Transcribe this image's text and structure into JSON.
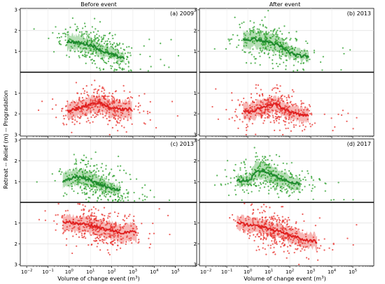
{
  "figure": {
    "col_titles": [
      "Before event",
      "After event"
    ],
    "ylabel": "Retreat -- Relief (m) -- Progradation",
    "xlabel_main": "Volume of change event (m",
    "xlabel_sup": "3",
    "xlabel_close": ")"
  },
  "colors": {
    "prog": "#2ca02c",
    "prog_line": "#1e8a2e",
    "ret": "#e8312c",
    "ret_line": "#e02020"
  },
  "chart_data": [
    {
      "type": "scatter",
      "panel_label": "(a) 2009",
      "x_scale": "log",
      "xlim": [
        0.005,
        1000000
      ],
      "ylim_top": [
        0,
        3
      ],
      "ylim_bottom": [
        0,
        3
      ],
      "grid": true,
      "series": [
        {
          "name": "",
          "kind": "progradation",
          "median_x": [
            0.8,
            1.5,
            3,
            6,
            12,
            25,
            50,
            100,
            200,
            400
          ],
          "median_y": [
            1.5,
            1.45,
            1.4,
            1.35,
            1.3,
            1.1,
            0.95,
            0.85,
            0.75,
            0.7
          ],
          "band_low": [
            1.1,
            1.1,
            1.05,
            1.0,
            0.95,
            0.8,
            0.7,
            0.6,
            0.55,
            0.5
          ],
          "band_high": [
            1.85,
            1.8,
            1.75,
            1.7,
            1.65,
            1.45,
            1.3,
            1.15,
            1.0,
            0.95
          ]
        },
        {
          "name": "",
          "kind": "retreat",
          "median_x": [
            0.8,
            1.5,
            3,
            6,
            12,
            25,
            50,
            100,
            200,
            400,
            900
          ],
          "median_y": [
            1.9,
            1.8,
            1.7,
            1.6,
            1.55,
            1.45,
            1.6,
            1.7,
            1.75,
            1.8,
            1.75
          ],
          "band_low": [
            1.5,
            1.4,
            1.35,
            1.25,
            1.2,
            1.1,
            1.25,
            1.3,
            1.35,
            1.4,
            1.3
          ],
          "band_high": [
            2.3,
            2.2,
            2.1,
            2.05,
            2.0,
            1.9,
            2.0,
            2.15,
            2.2,
            2.25,
            2.2
          ]
        }
      ]
    },
    {
      "type": "scatter",
      "panel_label": "(b) 2013",
      "x_scale": "log",
      "xlim": [
        0.005,
        1000000
      ],
      "ylim_top": [
        0,
        3
      ],
      "ylim_bottom": [
        0,
        3
      ],
      "grid": true,
      "series": [
        {
          "name": "",
          "kind": "progradation",
          "median_x": [
            0.6,
            1.2,
            2.5,
            5,
            10,
            20,
            40,
            80,
            160,
            320,
            800
          ],
          "median_y": [
            1.6,
            1.55,
            1.6,
            1.5,
            1.45,
            1.35,
            1.2,
            1.0,
            0.85,
            0.78,
            0.75
          ],
          "band_low": [
            1.2,
            1.15,
            1.2,
            1.1,
            1.05,
            0.95,
            0.85,
            0.7,
            0.6,
            0.55,
            0.5
          ],
          "band_high": [
            2.0,
            1.95,
            2.0,
            1.9,
            1.85,
            1.75,
            1.6,
            1.35,
            1.15,
            1.05,
            1.0
          ]
        },
        {
          "name": "",
          "kind": "retreat",
          "median_x": [
            0.6,
            1.2,
            2.5,
            5,
            10,
            20,
            40,
            80,
            160,
            320,
            800
          ],
          "median_y": [
            1.9,
            1.9,
            1.8,
            1.7,
            1.6,
            1.55,
            1.7,
            1.85,
            1.95,
            2.05,
            2.1
          ],
          "band_low": [
            1.5,
            1.5,
            1.4,
            1.3,
            1.25,
            1.2,
            1.35,
            1.5,
            1.6,
            1.7,
            1.75
          ],
          "band_high": [
            2.3,
            2.3,
            2.2,
            2.1,
            2.0,
            1.95,
            2.05,
            2.2,
            2.3,
            2.4,
            2.45
          ]
        }
      ]
    },
    {
      "type": "scatter",
      "panel_label": "(c) 2013",
      "x_scale": "log",
      "xlim": [
        0.005,
        1000000
      ],
      "ylim_top": [
        0,
        3
      ],
      "ylim_bottom": [
        0,
        3
      ],
      "grid": true,
      "series": [
        {
          "name": "",
          "kind": "progradation",
          "median_x": [
            0.5,
            1,
            2,
            4,
            8,
            16,
            32,
            64,
            128,
            256
          ],
          "median_y": [
            1.0,
            1.1,
            1.25,
            1.2,
            1.1,
            0.95,
            0.85,
            0.75,
            0.65,
            0.6
          ],
          "band_low": [
            0.7,
            0.75,
            0.85,
            0.85,
            0.75,
            0.65,
            0.55,
            0.5,
            0.45,
            0.4
          ],
          "band_high": [
            1.4,
            1.5,
            1.65,
            1.6,
            1.5,
            1.35,
            1.2,
            1.05,
            0.9,
            0.85
          ]
        },
        {
          "name": "",
          "kind": "retreat",
          "median_x": [
            0.5,
            1,
            2,
            4,
            8,
            16,
            32,
            64,
            128,
            256,
            512,
            1500
          ],
          "median_y": [
            0.95,
            0.95,
            1.0,
            1.05,
            1.1,
            1.15,
            1.25,
            1.35,
            1.4,
            1.45,
            1.45,
            1.4
          ],
          "band_low": [
            0.6,
            0.6,
            0.65,
            0.7,
            0.75,
            0.8,
            0.85,
            0.95,
            1.0,
            1.05,
            1.05,
            1.0
          ],
          "band_high": [
            1.35,
            1.35,
            1.4,
            1.45,
            1.5,
            1.55,
            1.7,
            1.8,
            1.85,
            1.9,
            1.9,
            1.85
          ]
        }
      ]
    },
    {
      "type": "scatter",
      "panel_label": "(d) 2017",
      "x_scale": "log",
      "xlim": [
        0.005,
        1000000
      ],
      "ylim_top": [
        0,
        3
      ],
      "ylim_bottom": [
        0,
        3
      ],
      "grid": true,
      "series": [
        {
          "name": "",
          "kind": "progradation",
          "median_x": [
            0.3,
            0.6,
            1.2,
            2.5,
            5,
            10,
            20,
            40,
            80,
            160,
            320
          ],
          "median_y": [
            1.05,
            1.05,
            1.05,
            1.45,
            1.55,
            1.4,
            1.3,
            1.15,
            1.0,
            0.95,
            0.9
          ],
          "band_low": [
            0.8,
            0.8,
            0.8,
            1.05,
            1.15,
            1.0,
            0.9,
            0.8,
            0.7,
            0.65,
            0.6
          ],
          "band_high": [
            1.3,
            1.3,
            1.35,
            1.9,
            1.95,
            1.8,
            1.7,
            1.55,
            1.35,
            1.25,
            1.2
          ]
        },
        {
          "name": "",
          "kind": "retreat",
          "median_x": [
            0.3,
            0.6,
            1.2,
            2.5,
            5,
            10,
            20,
            40,
            80,
            160,
            320,
            800,
            2000
          ],
          "median_y": [
            1.0,
            1.05,
            1.1,
            1.15,
            1.2,
            1.3,
            1.35,
            1.45,
            1.55,
            1.65,
            1.75,
            1.85,
            1.9
          ],
          "band_low": [
            0.7,
            0.7,
            0.75,
            0.8,
            0.85,
            0.95,
            1.0,
            1.1,
            1.2,
            1.3,
            1.4,
            1.5,
            1.55
          ],
          "band_high": [
            1.35,
            1.4,
            1.45,
            1.5,
            1.55,
            1.65,
            1.7,
            1.8,
            1.9,
            2.0,
            2.1,
            2.2,
            2.25
          ]
        }
      ]
    }
  ]
}
